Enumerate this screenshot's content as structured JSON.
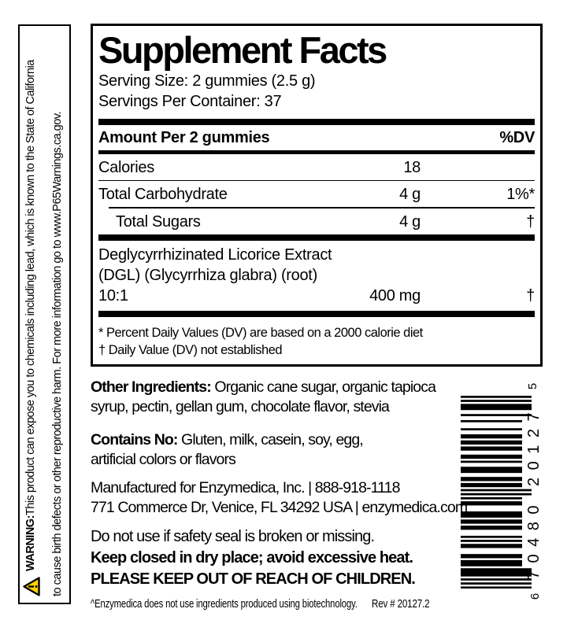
{
  "prop65_warning": {
    "warning_label": "WARNING:",
    "line1_rest": " This product can expose you to chemicals including lead, which is known to the State of California",
    "line2": "to cause birth defects or other reproductive harm. For more information go to www.P65Warnings.ca.gov."
  },
  "supplement_facts": {
    "title": "Supplement Facts",
    "serving_size": "Serving Size: 2 gummies (2.5 g)",
    "servings_per_container": "Servings Per Container: 37",
    "header": {
      "amount_label": "Amount Per 2 gummies",
      "dv_label": "%DV"
    },
    "rows": [
      {
        "name": "Calories",
        "amount": "18",
        "dv": ""
      },
      {
        "name": "Total Carbohydrate",
        "amount": "4 g",
        "dv": "1%*"
      },
      {
        "name": "Total Sugars",
        "amount": "4 g",
        "dv": "†"
      }
    ],
    "ingredient_row": {
      "name_line1": "Deglycyrrhizinated Licorice Extract",
      "name_line2": "(DGL) (Glycyrrhiza glabra) (root)",
      "name_line3": "10:1",
      "amount": "400 mg",
      "dv": "†"
    },
    "footnotes": [
      "* Percent Daily Values (DV) are based on a 2000 calorie diet",
      "† Daily Value (DV) not established"
    ]
  },
  "info": {
    "other_ingredients": {
      "label": "Other Ingredients:",
      "line1_rest": " Organic cane sugar, organic tapioca",
      "line2": "syrup, pectin, gellan gum, chocolate flavor, stevia"
    },
    "contains_no": {
      "label": "Contains No:",
      "line1_rest": " Gluten, milk, casein, soy, egg,",
      "line2": "artificial colors or flavors"
    },
    "manufactured_line1": "Manufactured for Enzymedica, Inc. | 888-918-1118",
    "manufactured_line2": "771 Commerce Dr, Venice, FL 34292 USA | enzymedica.com",
    "safety_seal": "Do not use if safety seal is broken or missing.",
    "storage": "Keep closed in dry place; avoid excessive heat.",
    "children": "PLEASE KEEP OUT OF REACH OF CHILDREN.",
    "biotech_note": "^Enzymedica does not use ingredients produced using biotechnology.",
    "rev": "Rev # 20127.2"
  },
  "barcode": {
    "digits": "670480201275",
    "display_first": "6",
    "display_main": "70480 20127",
    "display_last": "5"
  },
  "colors": {
    "ink": "#000000",
    "warning_yellow": "#ffd200"
  }
}
